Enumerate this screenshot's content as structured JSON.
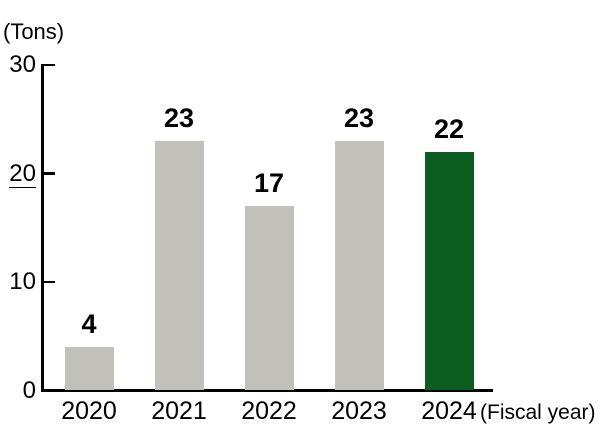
{
  "chart_data": {
    "type": "bar",
    "title": "",
    "unit_label": "(Tons)",
    "xaxis_label": "(Fiscal year)",
    "categories": [
      "2020",
      "2021",
      "2022",
      "2023",
      "2024"
    ],
    "values": [
      4,
      23,
      17,
      23,
      22
    ],
    "value_labels": [
      "4",
      "23",
      "17",
      "23",
      "22"
    ],
    "ytick_labels": [
      "0",
      "10",
      "20",
      "30"
    ],
    "yticks": [
      0,
      10,
      20,
      30
    ],
    "ylim": [
      0,
      30
    ],
    "highlight_category": "2024",
    "ytick_underline_value": 20,
    "grid": "off",
    "legend": "none",
    "colors": {
      "bar_default": "#c1c0bb",
      "bar_highlight": "#0b5e20",
      "axis": "#000000",
      "text": "#000000",
      "background": "#ffffff"
    }
  }
}
